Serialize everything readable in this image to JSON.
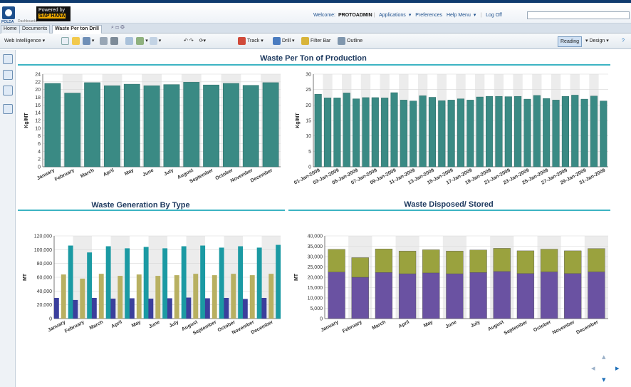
{
  "brand": {
    "logo_text": "POLDA",
    "logo_sub": "Dashboards",
    "powered_by": "Powered by",
    "sap_hana": "SAP HANA"
  },
  "header": {
    "welcome_prefix": "Welcome:",
    "user": "PROTOADMIN",
    "applications": "Applications",
    "preferences": "Preferences",
    "help_menu": "Help Menu",
    "log_off": "Log Off"
  },
  "tabs": [
    "Home",
    "Documents",
    "Waste Per ton Drill"
  ],
  "toolbar": {
    "web_intelligence": "Web Intelligence",
    "track": "Track",
    "drill": "Drill",
    "filter_bar": "Filter Bar",
    "outline": "Outline",
    "reading": "Reading",
    "design": "Design"
  },
  "icons": {
    "colors": {
      "teal": "#3a8a84",
      "teal_light": "#1b9aa3",
      "gold": "#b8b061",
      "navy": "#3b3f9c",
      "purple": "#6a52a2",
      "olive": "#9aa23e",
      "accent_line": "#3cb4c3"
    }
  },
  "sections": {
    "top_title": "Waste Per Ton of Production",
    "bl_title": "Waste Generation By Type",
    "br_title": "Waste Disposed/ Stored"
  },
  "chart_data": [
    {
      "type": "bar",
      "title": "Waste Per Ton of Production",
      "ylabel": "Kg/MT",
      "ylim": [
        0,
        24
      ],
      "yticks": [
        0,
        2,
        4,
        6,
        8,
        10,
        12,
        14,
        16,
        18,
        20,
        22,
        24
      ],
      "categories": [
        "January",
        "February",
        "March",
        "April",
        "May",
        "June",
        "July",
        "August",
        "September",
        "October",
        "November",
        "December"
      ],
      "values": [
        21.6,
        19.1,
        21.8,
        21.0,
        21.4,
        21.0,
        21.3,
        21.9,
        21.2,
        21.6,
        21.1,
        21.8
      ]
    },
    {
      "type": "bar",
      "ylabel": "Kg/MT",
      "ylim": [
        0,
        30
      ],
      "yticks": [
        0,
        5,
        10,
        15,
        20,
        25,
        30
      ],
      "categories": [
        "01-Jan-2009",
        "02-Jan-2009",
        "03-Jan-2009",
        "04-Jan-2009",
        "05-Jan-2009",
        "06-Jan-2009",
        "07-Jan-2009",
        "08-Jan-2009",
        "09-Jan-2009",
        "10-Jan-2009",
        "11-Jan-2009",
        "12-Jan-2009",
        "13-Jan-2009",
        "14-Jan-2009",
        "15-Jan-2009",
        "16-Jan-2009",
        "17-Jan-2009",
        "18-Jan-2009",
        "19-Jan-2009",
        "20-Jan-2009",
        "21-Jan-2009",
        "22-Jan-2009",
        "23-Jan-2009",
        "24-Jan-2009",
        "25-Jan-2009",
        "26-Jan-2009",
        "27-Jan-2009",
        "28-Jan-2009",
        "29-Jan-2009",
        "30-Jan-2009",
        "31-Jan-2009"
      ],
      "tick_labels": [
        "01-Jan-2009",
        "",
        "03-Jan-2009",
        "",
        "05-Jan-2009",
        "",
        "07-Jan-2009",
        "",
        "09-Jan-2009",
        "",
        "11-Jan-2009",
        "",
        "13-Jan-2009",
        "",
        "15-Jan-2009",
        "",
        "17-Jan-2009",
        "",
        "19-Jan-2009",
        "",
        "21-Jan-2009",
        "",
        "23-Jan-2009",
        "",
        "25-Jan-2009",
        "",
        "27-Jan-2009",
        "",
        "29-Jan-2009",
        "",
        "31-Jan-2009"
      ],
      "values": [
        23.5,
        22.3,
        22.3,
        23.9,
        22.0,
        22.4,
        22.4,
        22.3,
        24.0,
        21.6,
        21.3,
        23.0,
        22.5,
        21.4,
        21.6,
        22.0,
        21.6,
        22.6,
        22.8,
        22.8,
        22.7,
        22.8,
        21.9,
        23.1,
        22.1,
        21.6,
        22.8,
        23.2,
        21.9,
        22.9,
        21.3
      ]
    },
    {
      "type": "bar",
      "title": "Waste Generation By Type",
      "ylabel": "MT",
      "ylim": [
        0,
        120000
      ],
      "yticks": [
        0,
        20000,
        40000,
        60000,
        80000,
        100000,
        120000
      ],
      "ytick_labels": [
        "0",
        "20,000",
        "40,000",
        "60,000",
        "80,000",
        "100,000",
        "120,000"
      ],
      "categories": [
        "January",
        "February",
        "March",
        "April",
        "May",
        "June",
        "July",
        "August",
        "September",
        "October",
        "November",
        "December"
      ],
      "series": [
        {
          "values": [
            30000,
            27000,
            30000,
            29000,
            29500,
            29000,
            29500,
            30500,
            29500,
            30000,
            28500,
            30000
          ]
        },
        {
          "values": [
            64000,
            58000,
            65000,
            62000,
            64000,
            62000,
            63000,
            65000,
            63000,
            65000,
            63000,
            65000
          ]
        },
        {
          "values": [
            106000,
            96000,
            105000,
            102000,
            104000,
            102000,
            105000,
            106000,
            103000,
            105000,
            103000,
            107000
          ]
        }
      ]
    },
    {
      "type": "bar",
      "stacked": true,
      "title": "Waste Disposed/ Stored",
      "ylabel": "MT",
      "ylim": [
        0,
        40000
      ],
      "yticks": [
        0,
        5000,
        10000,
        15000,
        20000,
        25000,
        30000,
        35000,
        40000
      ],
      "ytick_labels": [
        "0",
        "5,000",
        "10,000",
        "15,000",
        "20,000",
        "25,000",
        "30,000",
        "35,000",
        "40,000"
      ],
      "categories": [
        "January",
        "February",
        "March",
        "April",
        "May",
        "June",
        "July",
        "August",
        "September",
        "October",
        "November",
        "December"
      ],
      "series": [
        {
          "values": [
            22500,
            20000,
            22300,
            21700,
            22100,
            21700,
            22300,
            22800,
            21800,
            22600,
            21800,
            22600
          ]
        },
        {
          "values": [
            11000,
            9500,
            11400,
            11000,
            11200,
            11000,
            10900,
            11200,
            11000,
            11000,
            11000,
            11300
          ]
        }
      ]
    }
  ]
}
